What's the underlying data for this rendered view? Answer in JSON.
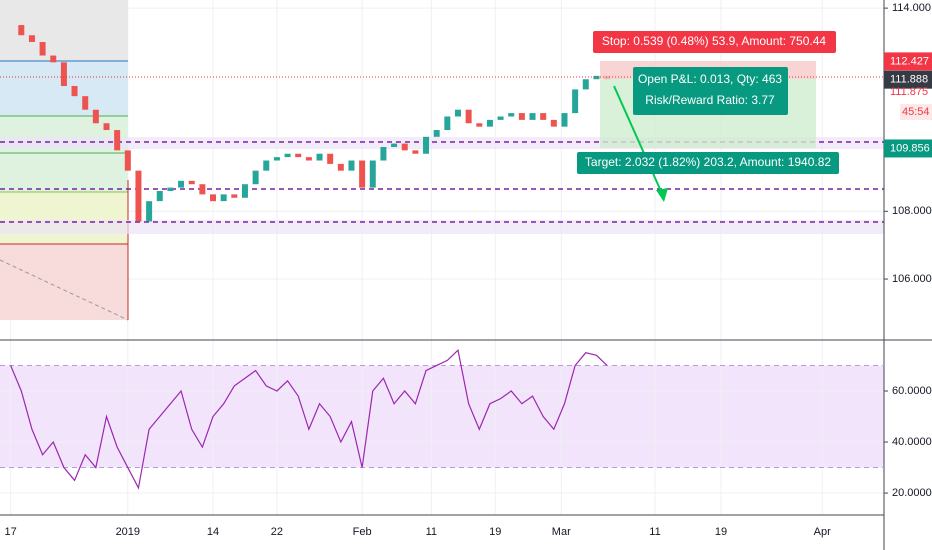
{
  "chart_data": [
    {
      "type": "candlestick",
      "x": [
        0,
        1,
        2,
        3,
        4,
        5,
        6,
        7,
        8,
        9,
        10,
        11,
        12,
        13,
        14,
        15,
        16,
        17,
        18,
        19,
        20,
        21,
        22,
        23,
        24,
        25,
        26,
        27,
        28,
        29,
        30,
        31,
        32,
        33,
        34,
        35,
        36,
        37,
        38,
        39,
        40,
        41,
        42,
        43,
        44,
        45,
        46,
        47,
        48,
        49,
        50,
        51,
        52,
        53,
        54,
        55,
        56
      ],
      "values": [
        113.5,
        113.2,
        113.0,
        112.6,
        112.4,
        111.7,
        111.4,
        111.0,
        110.6,
        110.4,
        109.8,
        109.2,
        107.7,
        108.3,
        108.6,
        108.7,
        108.9,
        108.8,
        108.5,
        108.3,
        108.5,
        108.4,
        108.8,
        109.2,
        109.5,
        109.6,
        109.7,
        109.6,
        109.5,
        109.7,
        109.4,
        109.2,
        109.5,
        108.7,
        109.5,
        109.9,
        110.0,
        109.8,
        109.7,
        110.2,
        110.4,
        110.8,
        111.0,
        110.6,
        110.5,
        110.7,
        110.8,
        110.9,
        110.7,
        110.9,
        110.7,
        110.5,
        110.9,
        111.6,
        111.9,
        112.0,
        111.9
      ],
      "up_color": "#26a69a",
      "down_color": "#ef5350",
      "xlim": [
        -1,
        82
      ],
      "xticks": [
        {
          "value": 0,
          "label": "17"
        },
        {
          "value": 11,
          "label": "2019"
        },
        {
          "value": 19,
          "label": "14"
        },
        {
          "value": 25,
          "label": "22"
        },
        {
          "value": 33,
          "label": "Feb"
        },
        {
          "value": 39.5,
          "label": "11"
        },
        {
          "value": 45.5,
          "label": "19"
        },
        {
          "value": 51.7,
          "label": "Mar"
        },
        {
          "value": 60.5,
          "label": "11"
        },
        {
          "value": 66.7,
          "label": "19"
        },
        {
          "value": 76.2,
          "label": "Apr"
        }
      ],
      "ylim": [
        104.2,
        114.24
      ],
      "yticks": [
        {
          "value": 106,
          "label": "106.000"
        },
        {
          "value": 108,
          "label": "108.000"
        },
        {
          "value": 114,
          "label": "114.000"
        }
      ],
      "markers": [
        {
          "value": 112.427,
          "label": "112.427",
          "color": "#f23645"
        },
        {
          "value": 111.888,
          "label": "111.888",
          "color": "#363a45"
        },
        {
          "value": 109.856,
          "label": "109.856",
          "color": "#089981"
        }
      ],
      "price_text": {
        "value": 111.875,
        "label": "111.875",
        "countdown": "45:54"
      },
      "annotations": {
        "stop": "Stop: 0.539 (0.48%) 53.9, Amount: 750.44",
        "pnl": "Open P&L: 0.013, Qty: 463",
        "rr": "Risk/Reward Ratio: 3.77",
        "target": "Target: 2.032 (1.82%) 203.2, Amount: 1940.82"
      }
    },
    {
      "type": "line",
      "x": [
        0,
        1,
        2,
        3,
        4,
        5,
        6,
        7,
        8,
        9,
        10,
        11,
        12,
        13,
        14,
        15,
        16,
        17,
        18,
        19,
        20,
        21,
        22,
        23,
        24,
        25,
        26,
        27,
        28,
        29,
        30,
        31,
        32,
        33,
        34,
        35,
        36,
        37,
        38,
        39,
        40,
        41,
        42,
        43,
        44,
        45,
        46,
        47,
        48,
        49,
        50,
        51,
        52,
        53,
        54,
        55,
        56
      ],
      "values": [
        70,
        60,
        45,
        35,
        40,
        30,
        25,
        35,
        30,
        50,
        38,
        30,
        22,
        45,
        50,
        55,
        60,
        45,
        38,
        50,
        55,
        62,
        65,
        68,
        62,
        60,
        64,
        58,
        45,
        55,
        50,
        40,
        48,
        30,
        60,
        65,
        55,
        60,
        55,
        68,
        70,
        72,
        76,
        55,
        45,
        55,
        57,
        60,
        55,
        58,
        50,
        45,
        55,
        70,
        75,
        74,
        70
      ],
      "color": "#9c27b0",
      "band": [
        30,
        70
      ],
      "ylim": [
        11.4,
        79.2
      ],
      "yticks": [
        {
          "value": 20,
          "label": "20.0000"
        },
        {
          "value": 40,
          "label": "40.0000"
        },
        {
          "value": 60,
          "label": "60.0000"
        }
      ]
    }
  ]
}
